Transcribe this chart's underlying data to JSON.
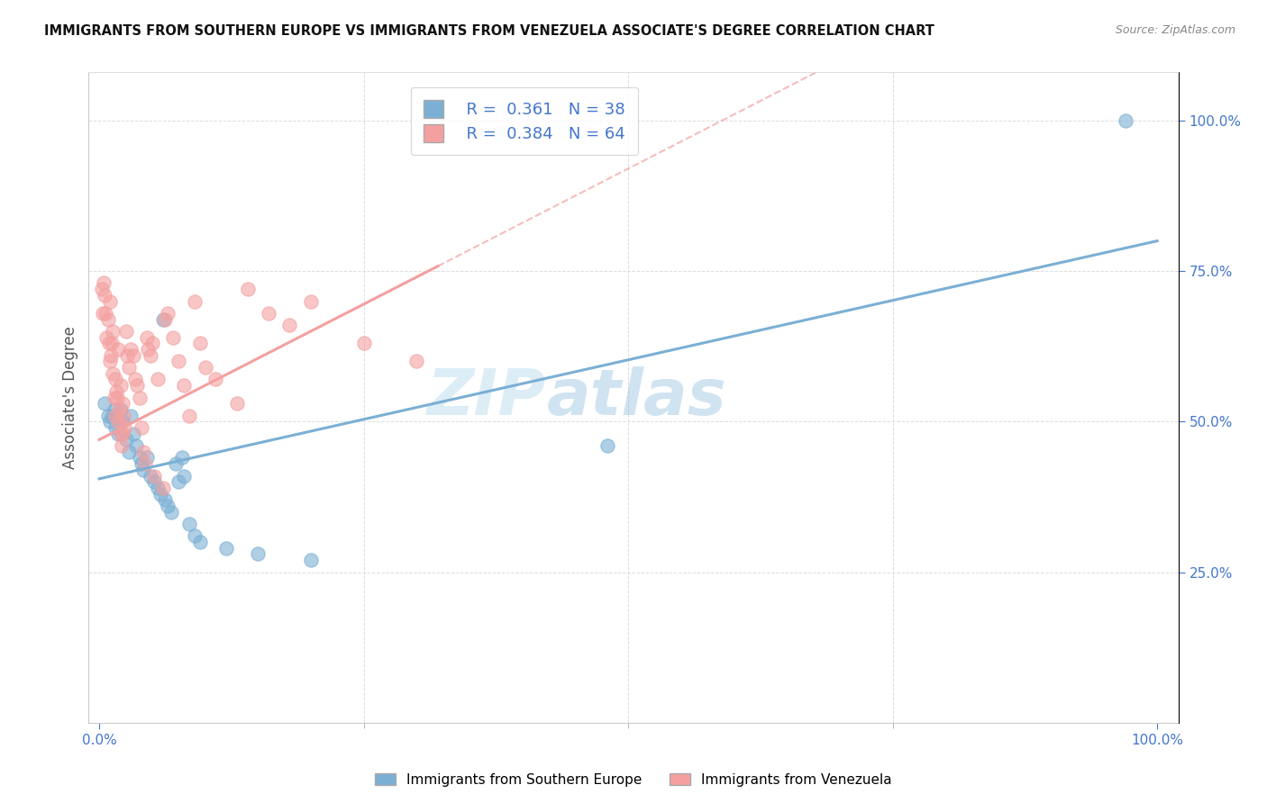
{
  "title": "IMMIGRANTS FROM SOUTHERN EUROPE VS IMMIGRANTS FROM VENEZUELA ASSOCIATE'S DEGREE CORRELATION CHART",
  "source": "Source: ZipAtlas.com",
  "ylabel": "Associate's Degree",
  "r_blue": 0.361,
  "n_blue": 38,
  "r_pink": 0.384,
  "n_pink": 64,
  "legend_label_blue": "Immigrants from Southern Europe",
  "legend_label_pink": "Immigrants from Venezuela",
  "blue_color": "#7BAFD4",
  "pink_color": "#F4A0A0",
  "blue_scatter": [
    [
      0.005,
      0.53
    ],
    [
      0.008,
      0.51
    ],
    [
      0.01,
      0.5
    ],
    [
      0.012,
      0.51
    ],
    [
      0.014,
      0.52
    ],
    [
      0.015,
      0.49
    ],
    [
      0.018,
      0.48
    ],
    [
      0.02,
      0.52
    ],
    [
      0.022,
      0.5
    ],
    [
      0.025,
      0.47
    ],
    [
      0.028,
      0.45
    ],
    [
      0.03,
      0.51
    ],
    [
      0.032,
      0.48
    ],
    [
      0.035,
      0.46
    ],
    [
      0.038,
      0.44
    ],
    [
      0.04,
      0.43
    ],
    [
      0.042,
      0.42
    ],
    [
      0.045,
      0.44
    ],
    [
      0.048,
      0.41
    ],
    [
      0.052,
      0.4
    ],
    [
      0.055,
      0.39
    ],
    [
      0.058,
      0.38
    ],
    [
      0.062,
      0.37
    ],
    [
      0.065,
      0.36
    ],
    [
      0.068,
      0.35
    ],
    [
      0.072,
      0.43
    ],
    [
      0.075,
      0.4
    ],
    [
      0.078,
      0.44
    ],
    [
      0.08,
      0.41
    ],
    [
      0.085,
      0.33
    ],
    [
      0.09,
      0.31
    ],
    [
      0.095,
      0.3
    ],
    [
      0.12,
      0.29
    ],
    [
      0.15,
      0.28
    ],
    [
      0.2,
      0.27
    ],
    [
      0.48,
      0.46
    ],
    [
      0.06,
      0.67
    ],
    [
      0.97,
      1.0
    ]
  ],
  "pink_scatter": [
    [
      0.002,
      0.72
    ],
    [
      0.003,
      0.68
    ],
    [
      0.004,
      0.73
    ],
    [
      0.005,
      0.71
    ],
    [
      0.006,
      0.68
    ],
    [
      0.007,
      0.64
    ],
    [
      0.008,
      0.67
    ],
    [
      0.009,
      0.63
    ],
    [
      0.01,
      0.6
    ],
    [
      0.01,
      0.7
    ],
    [
      0.011,
      0.61
    ],
    [
      0.012,
      0.63
    ],
    [
      0.013,
      0.58
    ],
    [
      0.013,
      0.65
    ],
    [
      0.014,
      0.54
    ],
    [
      0.015,
      0.57
    ],
    [
      0.015,
      0.51
    ],
    [
      0.016,
      0.55
    ],
    [
      0.017,
      0.54
    ],
    [
      0.018,
      0.5
    ],
    [
      0.018,
      0.62
    ],
    [
      0.019,
      0.52
    ],
    [
      0.02,
      0.48
    ],
    [
      0.02,
      0.56
    ],
    [
      0.021,
      0.46
    ],
    [
      0.022,
      0.53
    ],
    [
      0.022,
      0.48
    ],
    [
      0.023,
      0.51
    ],
    [
      0.024,
      0.49
    ],
    [
      0.025,
      0.65
    ],
    [
      0.026,
      0.61
    ],
    [
      0.028,
      0.59
    ],
    [
      0.03,
      0.62
    ],
    [
      0.032,
      0.61
    ],
    [
      0.034,
      0.57
    ],
    [
      0.036,
      0.56
    ],
    [
      0.038,
      0.54
    ],
    [
      0.04,
      0.49
    ],
    [
      0.042,
      0.45
    ],
    [
      0.043,
      0.43
    ],
    [
      0.045,
      0.64
    ],
    [
      0.046,
      0.62
    ],
    [
      0.048,
      0.61
    ],
    [
      0.05,
      0.63
    ],
    [
      0.052,
      0.41
    ],
    [
      0.055,
      0.57
    ],
    [
      0.06,
      0.39
    ],
    [
      0.062,
      0.67
    ],
    [
      0.065,
      0.68
    ],
    [
      0.07,
      0.64
    ],
    [
      0.075,
      0.6
    ],
    [
      0.08,
      0.56
    ],
    [
      0.085,
      0.51
    ],
    [
      0.09,
      0.7
    ],
    [
      0.095,
      0.63
    ],
    [
      0.1,
      0.59
    ],
    [
      0.11,
      0.57
    ],
    [
      0.13,
      0.53
    ],
    [
      0.14,
      0.72
    ],
    [
      0.16,
      0.68
    ],
    [
      0.18,
      0.66
    ],
    [
      0.2,
      0.7
    ],
    [
      0.25,
      0.63
    ],
    [
      0.3,
      0.6
    ]
  ],
  "xlim": [
    0.0,
    1.0
  ],
  "ylim": [
    0.0,
    1.05
  ],
  "watermark_zip": "ZIP",
  "watermark_atlas": "atlas",
  "background_color": "#FFFFFF",
  "grid_color": "#DDDDDD",
  "blue_line_intercept": 0.405,
  "blue_line_slope": 0.395,
  "pink_line_intercept": 0.47,
  "pink_line_slope": 0.9,
  "pink_line_data_end": 0.32
}
